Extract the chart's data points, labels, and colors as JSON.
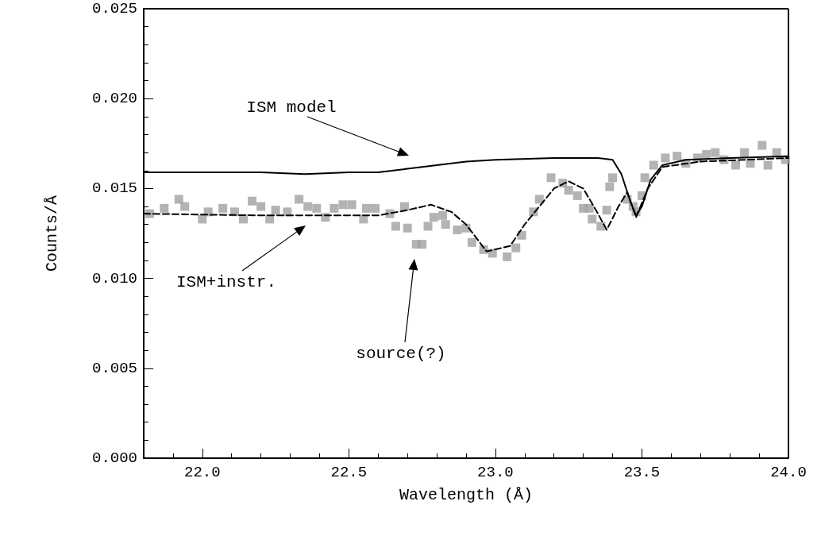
{
  "chart_data": {
    "type": "line",
    "xlabel": "Wavelength (Å)",
    "ylabel": "Counts/Å",
    "xlim": [
      21.8,
      24.0
    ],
    "xticks": [
      {
        "value": 22.0,
        "label": "22.0"
      },
      22.5,
      {
        "value": 23.0,
        "label": "23.0"
      },
      23.5,
      {
        "value": 24.0,
        "label": "24.0"
      }
    ],
    "ylim": [
      0,
      0.025
    ],
    "yticks": [
      {
        "value": 0,
        "label": "0.000"
      },
      0.005,
      {
        "value": 0.01,
        "label": "0.010"
      },
      0.015,
      {
        "value": 0.02,
        "label": "0.020"
      },
      0.025
    ],
    "grid": false,
    "annotations": [
      "ISM model",
      "ISM+instr.",
      "source(?)"
    ],
    "series": [
      {
        "type": "scatter",
        "marker": "square",
        "color": "#a0a0a0",
        "x": [
          21.82,
          21.87,
          21.92,
          21.94,
          22.0,
          22.02,
          22.07,
          22.11,
          22.14,
          22.17,
          22.2,
          22.23,
          22.25,
          22.29,
          22.33,
          22.36,
          22.39,
          22.42,
          22.45,
          22.48,
          22.51,
          22.55,
          22.56,
          22.59,
          22.64,
          22.66,
          22.69,
          22.7,
          22.73,
          22.75,
          22.77,
          22.79,
          22.82,
          22.83,
          22.87,
          22.9,
          22.92,
          22.96,
          22.99,
          23.04,
          23.07,
          23.09,
          23.13,
          23.15,
          23.19,
          23.23,
          23.25,
          23.28,
          23.3,
          23.32,
          23.33,
          23.36,
          23.38,
          23.39,
          23.4,
          23.45,
          23.47,
          23.48,
          23.5,
          23.51,
          23.54,
          23.58,
          23.62,
          23.65,
          23.69,
          23.72,
          23.75,
          23.78,
          23.82,
          23.85,
          23.87,
          23.91,
          23.93,
          23.96,
          23.99
        ],
        "values": [
          0.0136,
          0.0139,
          0.0144,
          0.014,
          0.0133,
          0.0137,
          0.0139,
          0.0137,
          0.0133,
          0.0143,
          0.014,
          0.0133,
          0.0138,
          0.0137,
          0.0144,
          0.014,
          0.0139,
          0.0134,
          0.0139,
          0.0141,
          0.0141,
          0.0133,
          0.0139,
          0.0139,
          0.0136,
          0.0129,
          0.014,
          0.0128,
          0.0119,
          0.0119,
          0.0129,
          0.0134,
          0.0135,
          0.013,
          0.0127,
          0.0128,
          0.012,
          0.0116,
          0.0114,
          0.0112,
          0.0117,
          0.0124,
          0.0137,
          0.0144,
          0.0156,
          0.0153,
          0.0149,
          0.0146,
          0.0139,
          0.0139,
          0.0133,
          0.0129,
          0.0138,
          0.0151,
          0.0156,
          0.0144,
          0.014,
          0.0137,
          0.0146,
          0.0156,
          0.0163,
          0.0167,
          0.0168,
          0.0164,
          0.0167,
          0.0169,
          0.017,
          0.0166,
          0.0163,
          0.017,
          0.0164,
          0.0174,
          0.0163,
          0.017,
          0.0166
        ]
      },
      {
        "marker": "none",
        "line_style": "solid",
        "color": "#000000",
        "x": [
          21.8,
          22.2,
          22.35,
          22.5,
          22.6,
          22.7,
          22.8,
          22.9,
          23.0,
          23.2,
          23.35,
          23.4,
          23.43,
          23.46,
          23.48,
          23.5,
          23.53,
          23.57,
          23.65,
          23.8,
          24.0
        ],
        "values": [
          0.0159,
          0.0159,
          0.0158,
          0.0159,
          0.0159,
          0.0161,
          0.0163,
          0.0165,
          0.0166,
          0.0167,
          0.0167,
          0.0166,
          0.0158,
          0.0143,
          0.0135,
          0.014,
          0.0155,
          0.0163,
          0.0166,
          0.0167,
          0.0168
        ]
      },
      {
        "marker": "none",
        "line_style": "dashed",
        "color": "#000000",
        "x": [
          21.8,
          22.2,
          22.35,
          22.6,
          22.7,
          22.78,
          22.85,
          22.9,
          22.97,
          23.05,
          23.1,
          23.2,
          23.25,
          23.3,
          23.35,
          23.38,
          23.42,
          23.45,
          23.48,
          23.52,
          23.57,
          23.7,
          24.0
        ],
        "values": [
          0.0136,
          0.0135,
          0.0135,
          0.0135,
          0.0138,
          0.0141,
          0.0137,
          0.013,
          0.0115,
          0.0118,
          0.013,
          0.015,
          0.0154,
          0.015,
          0.0136,
          0.0127,
          0.014,
          0.0148,
          0.0134,
          0.015,
          0.0162,
          0.0165,
          0.0167
        ]
      }
    ]
  }
}
